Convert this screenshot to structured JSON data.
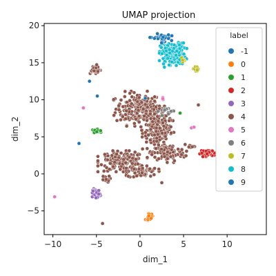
{
  "chart_data": {
    "type": "scatter",
    "title": "UMAP projection",
    "xlabel": "dim_1",
    "ylabel": "dim_2",
    "xlim": [
      -11,
      14.5
    ],
    "ylim": [
      -8.2,
      20.3
    ],
    "xticks": [
      -10,
      -5,
      0,
      5,
      10
    ],
    "yticks": [
      -5,
      0,
      5,
      10,
      15,
      20
    ],
    "grid": false,
    "legend": {
      "title": "label",
      "position": "top-right",
      "entries": [
        {
          "label": "-1",
          "color": "#1f77b4"
        },
        {
          "label": "0",
          "color": "#ff7f0e"
        },
        {
          "label": "1",
          "color": "#2ca02c"
        },
        {
          "label": "2",
          "color": "#d62728"
        },
        {
          "label": "3",
          "color": "#9467bd"
        },
        {
          "label": "4",
          "color": "#8c564b"
        },
        {
          "label": "5",
          "color": "#e377c2"
        },
        {
          "label": "6",
          "color": "#7f7f7f"
        },
        {
          "label": "7",
          "color": "#bcbd22"
        },
        {
          "label": "8",
          "color": "#17becf"
        },
        {
          "label": "9",
          "color": "#1f77b4"
        }
      ]
    },
    "clusters": [
      {
        "label": "4",
        "center": [
          -0.2,
          8.8
        ],
        "spread": [
          1.8,
          1.5
        ],
        "count": 200
      },
      {
        "label": "4",
        "center": [
          2.0,
          6.0
        ],
        "spread": [
          1.2,
          2.0
        ],
        "count": 200
      },
      {
        "label": "4",
        "center": [
          -2.0,
          1.7
        ],
        "spread": [
          1.8,
          0.9
        ],
        "count": 160
      },
      {
        "label": "4",
        "center": [
          3.3,
          2.8
        ],
        "spread": [
          1.3,
          0.8
        ],
        "count": 100
      },
      {
        "label": "4",
        "center": [
          0.3,
          0.3
        ],
        "spread": [
          1.2,
          0.6
        ],
        "count": 60
      },
      {
        "label": "4",
        "center": [
          -5.2,
          14.1
        ],
        "spread": [
          0.5,
          0.4
        ],
        "count": 35
      },
      {
        "label": "4",
        "center": [
          -4.0,
          -0.7
        ],
        "spread": [
          0.4,
          0.3
        ],
        "count": 12
      },
      {
        "label": "4",
        "center": [
          5.8,
          3.6
        ],
        "spread": [
          0.3,
          0.3
        ],
        "count": 8
      },
      {
        "label": "8",
        "center": [
          3.8,
          16.2
        ],
        "spread": [
          1.0,
          1.0
        ],
        "count": 180
      },
      {
        "label": "9",
        "center": [
          2.4,
          18.3
        ],
        "spread": [
          0.8,
          0.4
        ],
        "count": 35
      },
      {
        "label": "7",
        "center": [
          6.5,
          14.2
        ],
        "spread": [
          0.3,
          0.2
        ],
        "count": 20
      },
      {
        "label": "7",
        "center": [
          5.0,
          15.2
        ],
        "spread": [
          0.2,
          0.3
        ],
        "count": 6
      },
      {
        "label": "2",
        "center": [
          7.8,
          2.8
        ],
        "spread": [
          0.6,
          0.3
        ],
        "count": 40
      },
      {
        "label": "3",
        "center": [
          -5.0,
          -2.6
        ],
        "spread": [
          0.3,
          0.4
        ],
        "count": 40
      },
      {
        "label": "0",
        "center": [
          1.1,
          -5.8
        ],
        "spread": [
          0.3,
          0.3
        ],
        "count": 25
      },
      {
        "label": "1",
        "center": [
          -4.8,
          5.8
        ],
        "spread": [
          0.5,
          0.15
        ],
        "count": 15
      },
      {
        "label": "6",
        "center": [
          3.0,
          8.5
        ],
        "spread": [
          0.6,
          0.4
        ],
        "count": 15
      },
      {
        "label": "5",
        "center": [
          2.7,
          10.1
        ],
        "spread": [
          0.2,
          0.2
        ],
        "count": 6
      }
    ],
    "outliers": [
      {
        "label": "5",
        "x": -9.8,
        "y": -3.1
      },
      {
        "label": "5",
        "x": -6.5,
        "y": 8.9
      },
      {
        "label": "5",
        "x": 5.9,
        "y": 6.2
      },
      {
        "label": "5",
        "x": 6.2,
        "y": 6.3
      },
      {
        "label": "-1",
        "x": -7.0,
        "y": 4.1
      },
      {
        "label": "-1",
        "x": -5.8,
        "y": 12.5
      },
      {
        "label": "-1",
        "x": -4.9,
        "y": 10.5
      },
      {
        "label": "-1",
        "x": 0.6,
        "y": 10.2
      },
      {
        "label": "4",
        "x": -4.3,
        "y": -6.7
      },
      {
        "label": "4",
        "x": 6.7,
        "y": 9.3
      },
      {
        "label": "4",
        "x": 2.5,
        "y": -1.2
      },
      {
        "label": "1",
        "x": 4.6,
        "y": 8.2
      },
      {
        "label": "8",
        "x": 2.8,
        "y": 14.4
      }
    ]
  }
}
